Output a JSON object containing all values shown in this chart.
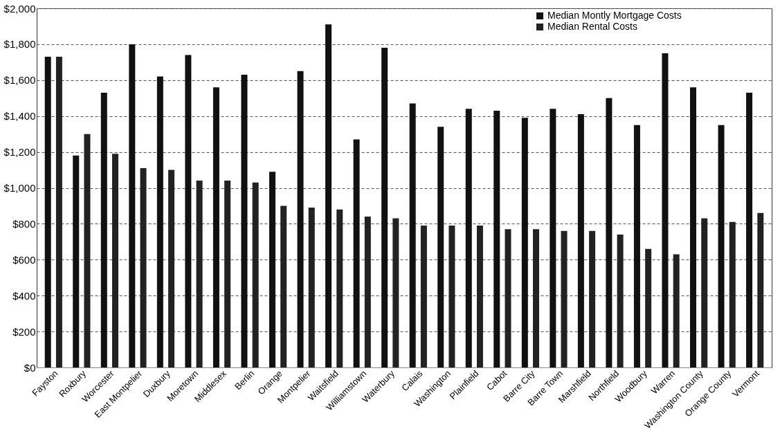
{
  "chart_data": {
    "type": "bar",
    "categories": [
      "Fayston",
      "Roxbury",
      "Worcester",
      "East Montpelier",
      "Duxbury",
      "Moretown",
      "Middlesex",
      "Berlin",
      "Orange",
      "Montpelier",
      "Waitsfield",
      "Williamstown",
      "Waterbury",
      "Calais",
      "Washington",
      "Plainfield",
      "Cabot",
      "Barre City",
      "Barre Town",
      "Marshfield",
      "Northfield",
      "Woodbury",
      "Warren",
      "Washington County",
      "Orange County",
      "Vermont"
    ],
    "series": [
      {
        "name": "Median Montly Mortgage Costs",
        "color": "#111111",
        "values": [
          1730,
          1180,
          1530,
          1800,
          1620,
          1740,
          1560,
          1630,
          1090,
          1650,
          1910,
          1270,
          1780,
          1470,
          1340,
          1440,
          1430,
          1390,
          1440,
          1410,
          1500,
          1350,
          1750,
          1560,
          1350,
          1530
        ]
      },
      {
        "name": "Median Rental Costs",
        "color": "#222222",
        "values": [
          1730,
          1300,
          1190,
          1110,
          1100,
          1040,
          1040,
          1030,
          900,
          890,
          880,
          840,
          830,
          790,
          790,
          790,
          770,
          770,
          760,
          760,
          740,
          660,
          630,
          830,
          810,
          860
        ]
      }
    ],
    "ylim": [
      0,
      2000
    ],
    "yticks": [
      {
        "value": 0,
        "label": "$0"
      },
      {
        "value": 200,
        "label": "$200"
      },
      {
        "value": 400,
        "label": "$400"
      },
      {
        "value": 600,
        "label": "$600"
      },
      {
        "value": 800,
        "label": "$800"
      },
      {
        "value": 1000,
        "label": "$1,000"
      },
      {
        "value": 1200,
        "label": "$1,200"
      },
      {
        "value": 1400,
        "label": "$1,400"
      },
      {
        "value": 1600,
        "label": "$1,600"
      },
      {
        "value": 1800,
        "label": "$1,800"
      },
      {
        "value": 2000,
        "label": "$2,000"
      }
    ],
    "grid": "y",
    "line_style": "dashed",
    "legend": "top right"
  }
}
